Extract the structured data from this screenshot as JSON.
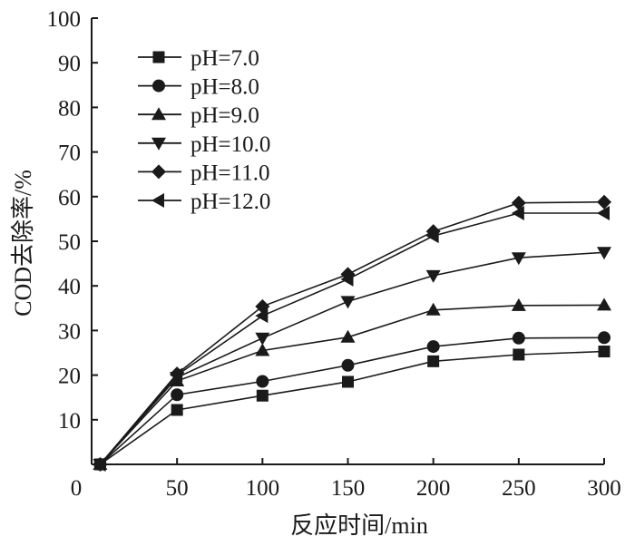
{
  "chart_data": {
    "type": "line",
    "title": "",
    "xlabel": "反应时间/min",
    "ylabel": "COD去除率/%",
    "xlim": [
      0,
      300
    ],
    "ylim": [
      0,
      100
    ],
    "x_ticks": [
      "0",
      "50",
      "100",
      "150",
      "200",
      "250",
      "300"
    ],
    "y_ticks": [
      "10",
      "20",
      "30",
      "40",
      "50",
      "60",
      "70",
      "80",
      "90",
      "100"
    ],
    "grid": false,
    "legend_position": "top-left",
    "x": [
      5,
      50,
      100,
      150,
      200,
      250,
      300
    ],
    "series": [
      {
        "name": "pH=7.0",
        "marker": "square",
        "values": [
          0,
          12.2,
          15.4,
          18.5,
          23.1,
          24.6,
          25.3
        ]
      },
      {
        "name": "pH=8.0",
        "marker": "circle",
        "values": [
          0,
          15.6,
          18.6,
          22.2,
          26.4,
          28.3,
          28.4
        ]
      },
      {
        "name": "pH=9.0",
        "marker": "triangle-up",
        "values": [
          0,
          18.7,
          25.5,
          28.5,
          34.6,
          35.6,
          35.7
        ]
      },
      {
        "name": "pH=10.0",
        "marker": "triangle-down",
        "values": [
          0,
          19.5,
          28.3,
          36.5,
          42.3,
          46.3,
          47.5
        ]
      },
      {
        "name": "pH=11.0",
        "marker": "diamond",
        "values": [
          0,
          20.3,
          35.4,
          42.6,
          52.2,
          58.6,
          58.8
        ]
      },
      {
        "name": "pH=12.0",
        "marker": "triangle-left",
        "values": [
          0,
          20.0,
          33.3,
          41.5,
          51.2,
          56.3,
          56.3
        ]
      }
    ]
  }
}
